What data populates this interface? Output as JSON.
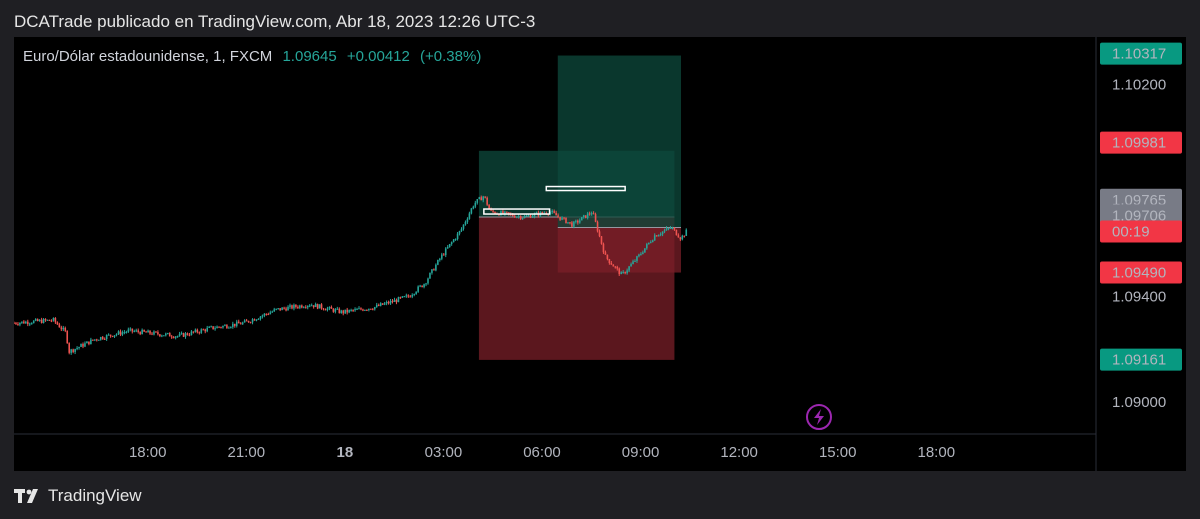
{
  "header": {
    "caption": "DCATrade publicado en TradingView.com, Abr 18, 2023 12:26 UTC-3"
  },
  "legend": {
    "symbol": "Euro/Dólar estadounidense, 1, FXCM",
    "price": "1.09645",
    "change": "+0.00412",
    "change_pct": "(+0.38%)"
  },
  "footer": {
    "brand": "TradingView",
    "logo_icon": "tradingview-logo-icon"
  },
  "colors": {
    "background": "#000000",
    "frame": "#1f1f23",
    "up": "#26a69a",
    "down": "#ef5350",
    "target_zone": "#0d4a3c",
    "stop_zone": "#7a1f28",
    "label_red": "#f23645",
    "label_green": "#089981",
    "label_gray": "#787b86",
    "lightning": "#9c27b0"
  },
  "chart_data": {
    "type": "candlestick",
    "symbol": "EUR/USD",
    "timeframe": "1",
    "exchange": "FXCM",
    "price_axis_label": "USD",
    "ylim": [
      1.0888,
      1.1038
    ],
    "xlim_hours": [
      16.0,
      40.5
    ],
    "y_ticks": [
      "1.10200",
      "1.09400",
      "1.09000"
    ],
    "x_ticks": [
      {
        "t": 18,
        "label": "18:00",
        "bold": false
      },
      {
        "t": 21,
        "label": "21:00",
        "bold": false
      },
      {
        "t": 24,
        "label": "18",
        "bold": true
      },
      {
        "t": 27,
        "label": "03:00",
        "bold": false
      },
      {
        "t": 30,
        "label": "06:00",
        "bold": false
      },
      {
        "t": 33,
        "label": "09:00",
        "bold": false
      },
      {
        "t": 36,
        "label": "12:00",
        "bold": false
      },
      {
        "t": 39,
        "label": "15:00",
        "bold": false
      },
      {
        "t": 42,
        "label": "18:00",
        "bold": false
      }
    ],
    "price_path": [
      [
        16.0,
        1.093
      ],
      [
        17.2,
        1.0931
      ],
      [
        17.6,
        1.0926
      ],
      [
        17.65,
        1.0919
      ],
      [
        18.5,
        1.0924
      ],
      [
        19.5,
        1.0927
      ],
      [
        21.0,
        1.0925
      ],
      [
        22.0,
        1.0928
      ],
      [
        23.0,
        1.093
      ],
      [
        24.0,
        1.0935
      ],
      [
        25.0,
        1.0937
      ],
      [
        26.0,
        1.0934
      ],
      [
        27.0,
        1.0936
      ],
      [
        28.0,
        1.094
      ],
      [
        28.5,
        1.0945
      ],
      [
        29.0,
        1.0955
      ],
      [
        29.6,
        1.0965
      ],
      [
        30.0,
        1.0975
      ],
      [
        30.3,
        1.0978
      ],
      [
        30.5,
        1.0972
      ],
      [
        31.5,
        1.097
      ],
      [
        32.3,
        1.0972
      ],
      [
        33.0,
        1.0967
      ],
      [
        33.6,
        1.0972
      ],
      [
        34.0,
        1.0955
      ],
      [
        34.5,
        1.0948
      ],
      [
        35.0,
        1.0955
      ],
      [
        35.5,
        1.0963
      ],
      [
        36.0,
        1.0966
      ],
      [
        36.3,
        1.0962
      ],
      [
        36.5,
        1.0965
      ]
    ],
    "positions": [
      {
        "type": "long",
        "t0": 30.15,
        "t1": 36.1,
        "entry": 1.097,
        "target": 1.0995,
        "stop": 1.0916
      },
      {
        "type": "short",
        "t0": 32.55,
        "t1": 36.3,
        "entry": 1.0966,
        "target": 1.1031,
        "stop": 1.0949
      }
    ],
    "price_labels": [
      {
        "price": 1.10317,
        "text": "1.10317",
        "color": "#089981"
      },
      {
        "price": 1.09981,
        "text": "1.09981",
        "color": "#f23645"
      },
      {
        "price": 1.09765,
        "text": "1.09765",
        "color": "#787b86"
      },
      {
        "price": 1.09706,
        "text": "1.09706",
        "color": "#787b86"
      },
      {
        "price": 1.09645,
        "text": "00:19",
        "color": "#f23645"
      },
      {
        "price": 1.0949,
        "text": "1.09490",
        "color": "#f23645"
      },
      {
        "price": 1.09161,
        "text": "1.09161",
        "color": "#089981"
      }
    ]
  }
}
